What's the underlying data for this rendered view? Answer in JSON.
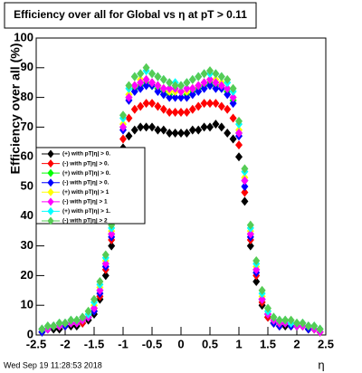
{
  "chart_data": {
    "type": "scatter",
    "title": "Efficiency over all for Global vs    η at pT > 0.11",
    "y_label": "Efficiency over all (%)",
    "x_label": "η",
    "timestamp": "Wed Sep 19 11:28:53 2018",
    "xlim": [
      -2.5,
      2.5
    ],
    "ylim": [
      0,
      100
    ],
    "xticks": [
      -2.5,
      -2,
      -1.5,
      -1,
      -0.5,
      0,
      0.5,
      1,
      1.5,
      2,
      2.5
    ],
    "yticks": [
      0,
      10,
      20,
      30,
      40,
      50,
      60,
      70,
      80,
      90,
      100
    ],
    "x": [
      -2.4,
      -2.3,
      -2.2,
      -2.1,
      -2.0,
      -1.9,
      -1.8,
      -1.7,
      -1.6,
      -1.5,
      -1.4,
      -1.3,
      -1.2,
      -1.1,
      -1.0,
      -0.9,
      -0.8,
      -0.7,
      -0.6,
      -0.5,
      -0.4,
      -0.3,
      -0.2,
      -0.1,
      0,
      0.1,
      0.2,
      0.3,
      0.4,
      0.5,
      0.6,
      0.7,
      0.8,
      0.9,
      1.0,
      1.1,
      1.2,
      1.3,
      1.4,
      1.5,
      1.6,
      1.7,
      1.8,
      1.9,
      2.0,
      2.1,
      2.2,
      2.3,
      2.4
    ],
    "series": [
      {
        "name": "(+) with pT|η| > 0.",
        "color": "#000000",
        "values": [
          1,
          2,
          2,
          2,
          3,
          3,
          3,
          4,
          5,
          7,
          12,
          20,
          30,
          45,
          63,
          67,
          69,
          70,
          70,
          70,
          69,
          69,
          68,
          68,
          68,
          68,
          69,
          69,
          70,
          70,
          71,
          70,
          68,
          66,
          60,
          45,
          30,
          18,
          10,
          6,
          4,
          3,
          3,
          3,
          3,
          3,
          2,
          2,
          1
        ]
      },
      {
        "name": "(-) with pT|η| > 0.",
        "color": "#ff0000",
        "values": [
          1,
          2,
          3,
          3,
          3,
          4,
          4,
          4,
          6,
          8,
          13,
          22,
          32,
          48,
          66,
          73,
          76,
          77,
          78,
          78,
          77,
          76,
          75,
          75,
          75,
          75,
          76,
          77,
          78,
          78,
          78,
          77,
          76,
          73,
          64,
          48,
          32,
          20,
          11,
          6,
          4,
          3,
          4,
          3,
          3,
          3,
          2,
          2,
          1
        ]
      },
      {
        "name": "(+) with pT|η| > 0.",
        "color": "#00ff00",
        "values": [
          2,
          2,
          3,
          3,
          4,
          4,
          4,
          5,
          6,
          9,
          15,
          24,
          34,
          52,
          70,
          80,
          83,
          84,
          85,
          84,
          83,
          82,
          81,
          82,
          82,
          81,
          82,
          83,
          84,
          85,
          84,
          84,
          82,
          79,
          68,
          52,
          34,
          22,
          12,
          7,
          5,
          4,
          4,
          4,
          3,
          3,
          3,
          2,
          1
        ]
      },
      {
        "name": "(-) with pT|η| > 0.",
        "color": "#0000ff",
        "values": [
          1,
          2,
          3,
          3,
          3,
          4,
          4,
          5,
          6,
          8,
          14,
          23,
          33,
          50,
          69,
          79,
          82,
          83,
          84,
          84,
          82,
          81,
          80,
          80,
          80,
          80,
          81,
          82,
          83,
          84,
          83,
          83,
          81,
          78,
          67,
          50,
          33,
          21,
          12,
          7,
          4,
          3,
          4,
          3,
          3,
          3,
          2,
          2,
          1
        ]
      },
      {
        "name": "(+) with pT|η| > 1",
        "color": "#ffff00",
        "values": [
          2,
          3,
          3,
          3,
          4,
          4,
          5,
          5,
          7,
          10,
          16,
          25,
          35,
          53,
          71,
          81,
          84,
          86,
          86,
          85,
          84,
          83,
          82,
          82,
          82,
          82,
          83,
          84,
          85,
          86,
          86,
          85,
          83,
          80,
          69,
          53,
          35,
          23,
          13,
          8,
          5,
          4,
          5,
          4,
          4,
          3,
          3,
          2,
          1
        ]
      },
      {
        "name": "(-) with pT|η| > 1",
        "color": "#ff00ff",
        "values": [
          2,
          2,
          3,
          3,
          4,
          4,
          4,
          5,
          6,
          9,
          15,
          24,
          34,
          52,
          70,
          80,
          84,
          85,
          86,
          85,
          84,
          83,
          83,
          83,
          82,
          83,
          83,
          84,
          85,
          86,
          85,
          84,
          83,
          80,
          68,
          52,
          34,
          22,
          12,
          7,
          5,
          4,
          4,
          4,
          3,
          3,
          3,
          2,
          1
        ]
      },
      {
        "name": "(+) with pT|η| > 1.",
        "color": "#00ffff",
        "values": [
          2,
          3,
          3,
          4,
          4,
          5,
          5,
          6,
          7,
          11,
          17,
          26,
          36,
          55,
          73,
          83,
          87,
          88,
          89,
          88,
          87,
          86,
          85,
          85,
          84,
          85,
          86,
          87,
          88,
          88,
          88,
          87,
          85,
          82,
          71,
          55,
          36,
          24,
          14,
          8,
          6,
          5,
          5,
          4,
          4,
          4,
          3,
          3,
          2
        ]
      },
      {
        "name": "(-) with pT|η| > 2",
        "color": "#55cc55",
        "values": [
          2,
          3,
          3,
          4,
          4,
          5,
          5,
          6,
          8,
          12,
          18,
          27,
          37,
          56,
          74,
          84,
          87,
          88,
          90,
          88,
          87,
          86,
          85,
          84,
          84,
          85,
          86,
          87,
          88,
          89,
          88,
          87,
          86,
          83,
          72,
          56,
          37,
          25,
          15,
          9,
          6,
          5,
          5,
          5,
          4,
          4,
          3,
          3,
          2
        ]
      }
    ]
  }
}
